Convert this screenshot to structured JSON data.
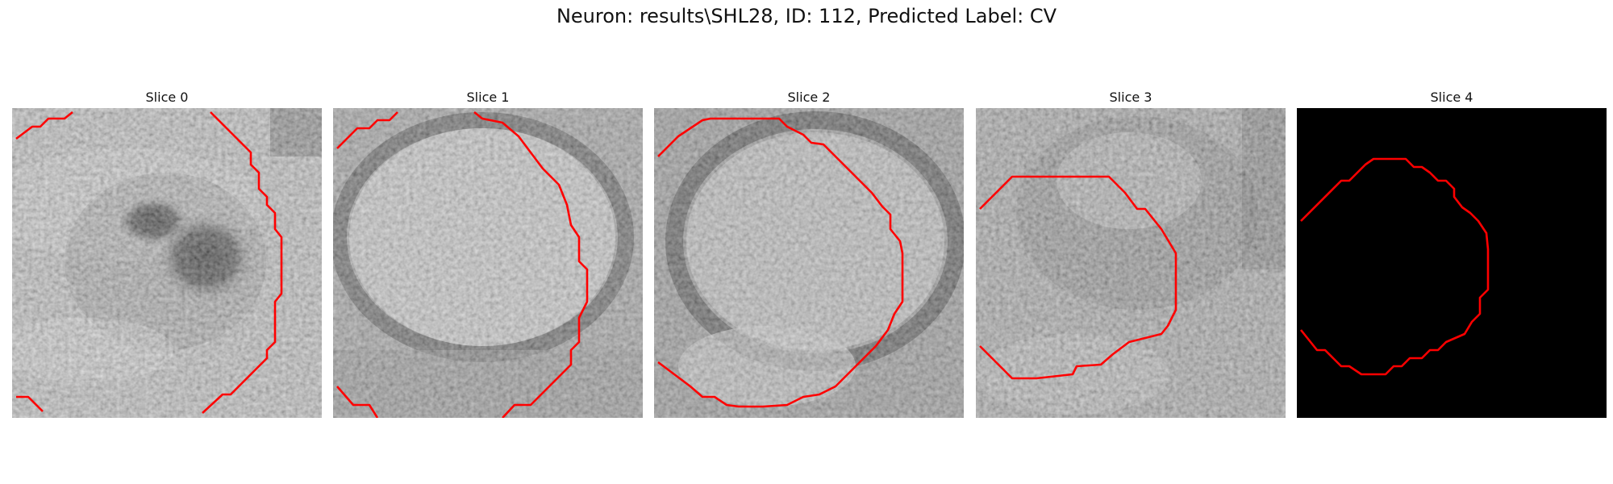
{
  "figure": {
    "title": "Neuron: results\\SHL28, ID: 112, Predicted Label: CV"
  },
  "panels": [
    {
      "title": "Slice 0",
      "contour_color": "#ff0000"
    },
    {
      "title": "Slice 1",
      "contour_color": "#ff0000"
    },
    {
      "title": "Slice 2",
      "contour_color": "#ff0000"
    },
    {
      "title": "Slice 3",
      "contour_color": "#ff0000"
    },
    {
      "title": "Slice 4",
      "contour_color": "#ff0000"
    }
  ]
}
